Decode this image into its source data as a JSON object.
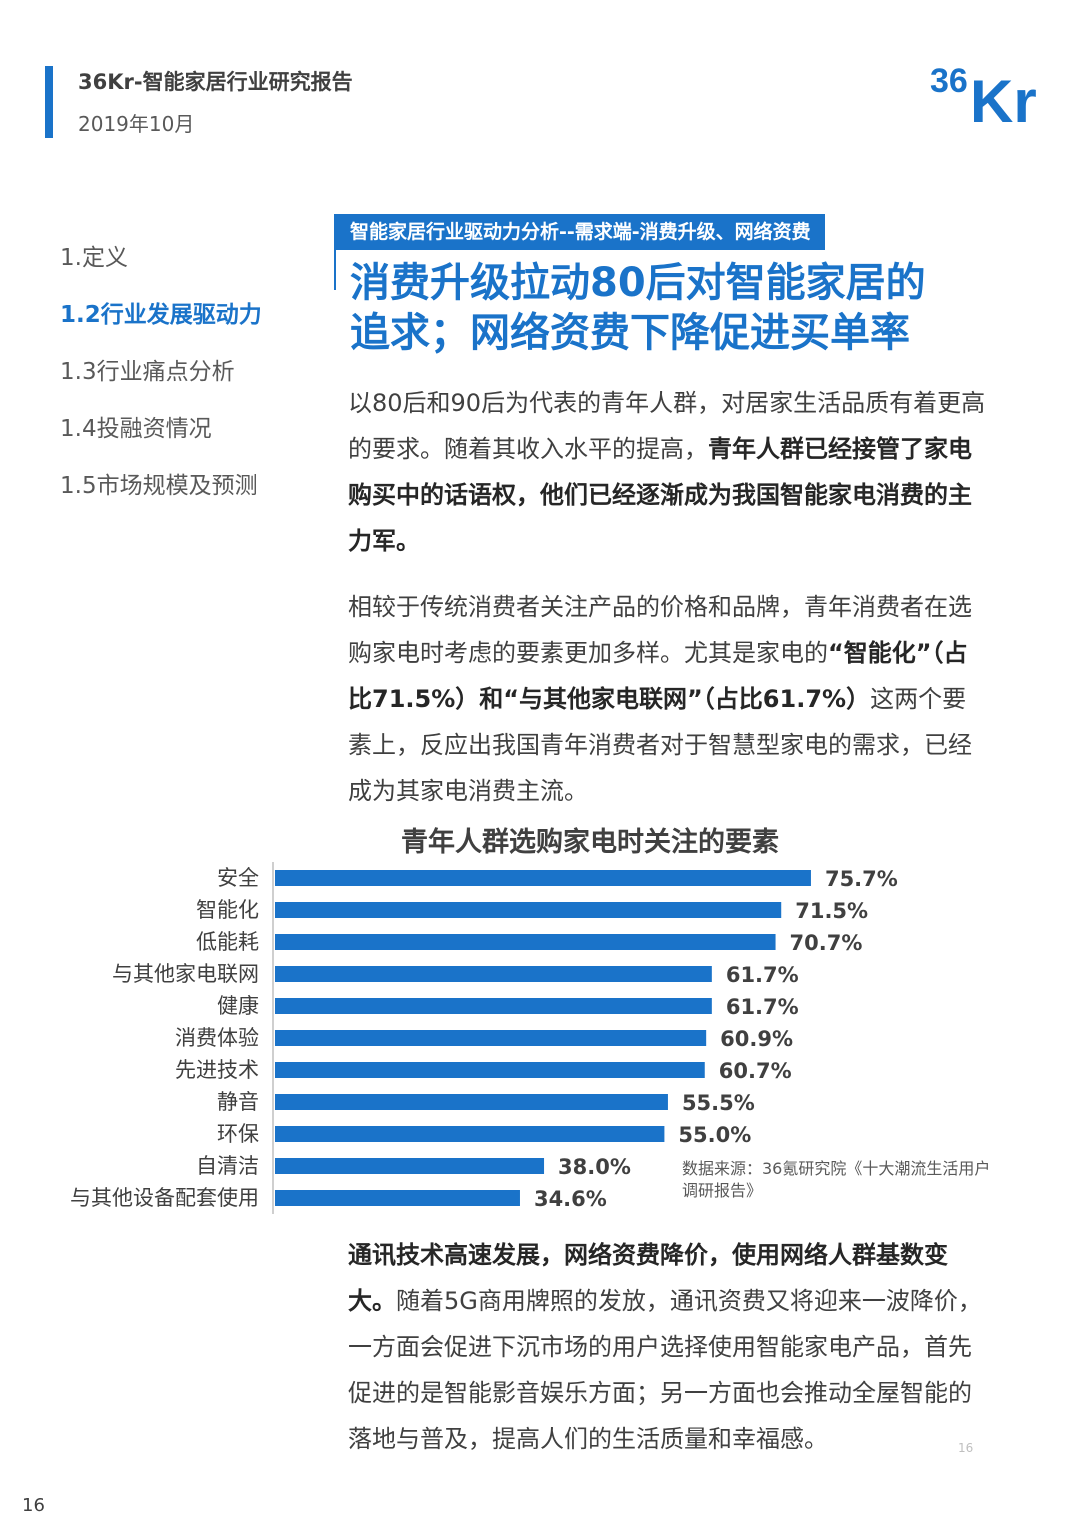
{
  "header": {
    "report_title": "36Kr-智能家居行业研究报告",
    "date": "2019年10月",
    "logo_text": "36Kr",
    "accent_color": "#1a73c9"
  },
  "nav": {
    "items": [
      {
        "label": "1.定义",
        "active": false
      },
      {
        "label": "1.2行业发展驱动力",
        "active": true
      },
      {
        "label": "1.3行业痛点分析",
        "active": false
      },
      {
        "label": "1.4投融资情况",
        "active": false
      },
      {
        "label": "1.5市场规模及预测",
        "active": false
      }
    ]
  },
  "section": {
    "tag": "智能家居行业驱动力分析--需求端-消费升级、网络资费",
    "headline_line1": "消费升级拉动80后对智能家居的",
    "headline_line2": "追求；网络资费下降促进买单率"
  },
  "paragraphs": {
    "p1_plain": "以80后和90后为代表的青年人群，对居家生活品质有着更高的要求。随着其收入水平的提高，",
    "p1_bold": "青年人群已经接管了家电购买中的话语权，他们已经逐渐成为我国智能家电消费的主力军。",
    "p2_plain1": "相较于传统消费者关注产品的价格和品牌，青年消费者在选购家电时考虑的要素更加多样。尤其是家电的",
    "p2_bold": "“智能化”（占比71.5%）和“与其他家电联网”（占比61.7%）",
    "p2_plain2": "这两个要素上，反应出我国青年消费者对于智慧型家电的需求，已经成为其家电消费主流。",
    "p3_bold": "通讯技术高速发展，网络资费降价，使用网络人群基数变大。",
    "p3_plain": "随着5G商用牌照的发放，通讯资费又将迎来一波降价，一方面会促进下沉市场的用户选择使用智能家电产品，首先促进的是智能影音娱乐方面；另一方面也会推动全屋智能的落地与普及，提高人们的生活质量和幸福感。"
  },
  "chart_data": {
    "type": "bar",
    "orientation": "horizontal",
    "title": "青年人群选购家电时关注的要素",
    "categories": [
      "安全",
      "智能化",
      "低能耗",
      "与其他家电联网",
      "健康",
      "消费体验",
      "先进技术",
      "静音",
      "环保",
      "自清洁",
      "与其他设备配套使用"
    ],
    "values": [
      75.7,
      71.5,
      70.7,
      61.7,
      61.7,
      60.9,
      60.7,
      55.5,
      55.0,
      38.0,
      34.6
    ],
    "value_labels": [
      "75.7%",
      "71.5%",
      "70.7%",
      "61.7%",
      "61.7%",
      "60.9%",
      "60.7%",
      "55.5%",
      "55.0%",
      "38.0%",
      "34.6%"
    ],
    "bar_color": "#1a73c9",
    "xlim": [
      0,
      100
    ]
  },
  "source_note": "数据来源：36氪研究院《十大潮流生活用户调研报告》",
  "page": {
    "number_small": "16",
    "number": "16"
  }
}
